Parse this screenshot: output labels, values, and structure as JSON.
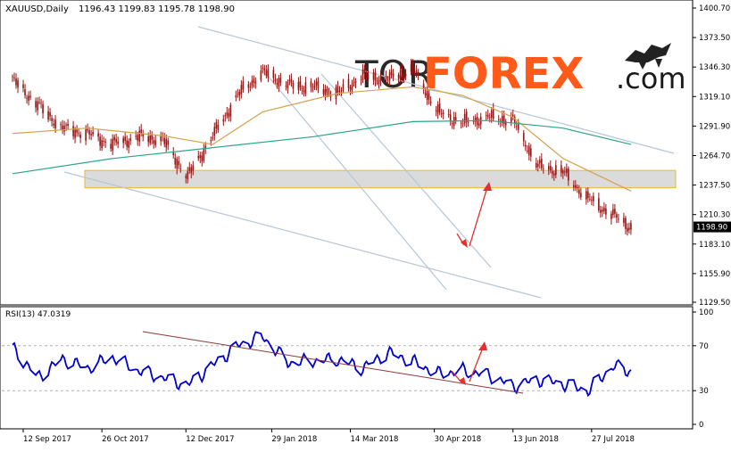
{
  "header": {
    "symbol_label": "XAUUSD,Daily",
    "ohlc_label": "1196.43 1199.83 1195.78 1198.90"
  },
  "watermark": {
    "brand_dark": "TOR",
    "brand_accent": "FOREX",
    "brand_tld": ".com"
  },
  "colors": {
    "candle": "#8b1a1a",
    "ma_fast": "#d4a24c",
    "ma_slow": "#2aa58a",
    "channel": "#b7c6d4",
    "rsi_line": "#0000cc",
    "rsi_trend": "#8b3a3a",
    "arrow": "#e03030",
    "zone_fill": "#d8d8d8",
    "zone_border": "#e8b020",
    "price_tag": "#000000"
  },
  "chart_data": [
    {
      "type": "line",
      "panel": "price",
      "title": "XAUUSD,Daily",
      "ylim": [
        1129.5,
        1400.7
      ],
      "y_ticks": [
        "1400.70",
        "1373.50",
        "1346.30",
        "1319.10",
        "1291.90",
        "1264.70",
        "1237.50",
        "1210.30",
        "1183.10",
        "1155.90",
        "1129.50"
      ],
      "current_price_label": "1198.90",
      "x_ticks": [
        "12 Sep 2017",
        "26 Oct 2017",
        "12 Dec 2017",
        "29 Jan 2018",
        "14 Mar 2018",
        "30 Apr 2018",
        "13 Jun 2018",
        "27 Jul 2018"
      ],
      "series": [
        {
          "style": "candles-close",
          "x": [
            "2017-09-05",
            "2017-09-19",
            "2017-10-03",
            "2017-10-17",
            "2017-10-31",
            "2017-11-14",
            "2017-11-28",
            "2017-12-12",
            "2017-12-26",
            "2018-01-09",
            "2018-01-23",
            "2018-02-06",
            "2018-02-20",
            "2018-03-06",
            "2018-03-20",
            "2018-04-03",
            "2018-04-17",
            "2018-05-01",
            "2018-05-15",
            "2018-05-29",
            "2018-06-12",
            "2018-06-26",
            "2018-07-10",
            "2018-07-24",
            "2018-08-07",
            "2018-08-17"
          ],
          "values": [
            1335,
            1312,
            1290,
            1285,
            1275,
            1282,
            1280,
            1245,
            1282,
            1320,
            1342,
            1330,
            1328,
            1322,
            1338,
            1335,
            1345,
            1305,
            1295,
            1300,
            1298,
            1255,
            1250,
            1225,
            1210,
            1198.9
          ]
        },
        {
          "style": "ma-fast",
          "x": [
            "2017-09-05",
            "2017-10-17",
            "2017-11-28",
            "2017-12-26",
            "2018-01-23",
            "2018-03-06",
            "2018-04-17",
            "2018-05-15",
            "2018-06-12",
            "2018-07-10",
            "2018-08-17"
          ],
          "values": [
            1285,
            1290,
            1283,
            1275,
            1305,
            1322,
            1328,
            1320,
            1300,
            1262,
            1232
          ]
        },
        {
          "style": "ma-slow",
          "x": [
            "2017-09-05",
            "2017-10-31",
            "2017-12-26",
            "2018-02-20",
            "2018-04-17",
            "2018-05-29",
            "2018-07-10",
            "2018-08-17"
          ],
          "values": [
            1248,
            1262,
            1272,
            1282,
            1296,
            1297,
            1290,
            1275
          ]
        }
      ],
      "support_zone": [
        1235,
        1251
      ]
    },
    {
      "type": "line",
      "panel": "indicator",
      "title": "RSI(13) 47.0319",
      "ylim": [
        0,
        100
      ],
      "y_ticks": [
        "100",
        "70",
        "30",
        "0"
      ],
      "series": [
        {
          "x": [
            "2017-09-05",
            "2017-09-19",
            "2017-10-03",
            "2017-10-17",
            "2017-10-31",
            "2017-11-14",
            "2017-12-12",
            "2018-01-09",
            "2018-01-23",
            "2018-02-06",
            "2018-03-06",
            "2018-03-20",
            "2018-04-03",
            "2018-04-17",
            "2018-05-01",
            "2018-05-15",
            "2018-05-29",
            "2018-06-12",
            "2018-06-26",
            "2018-07-10",
            "2018-07-24",
            "2018-08-07",
            "2018-08-17"
          ],
          "values": [
            68,
            42,
            58,
            50,
            60,
            48,
            35,
            70,
            78,
            55,
            58,
            50,
            64,
            56,
            45,
            48,
            44,
            34,
            40,
            36,
            30,
            52,
            47
          ]
        }
      ]
    }
  ]
}
